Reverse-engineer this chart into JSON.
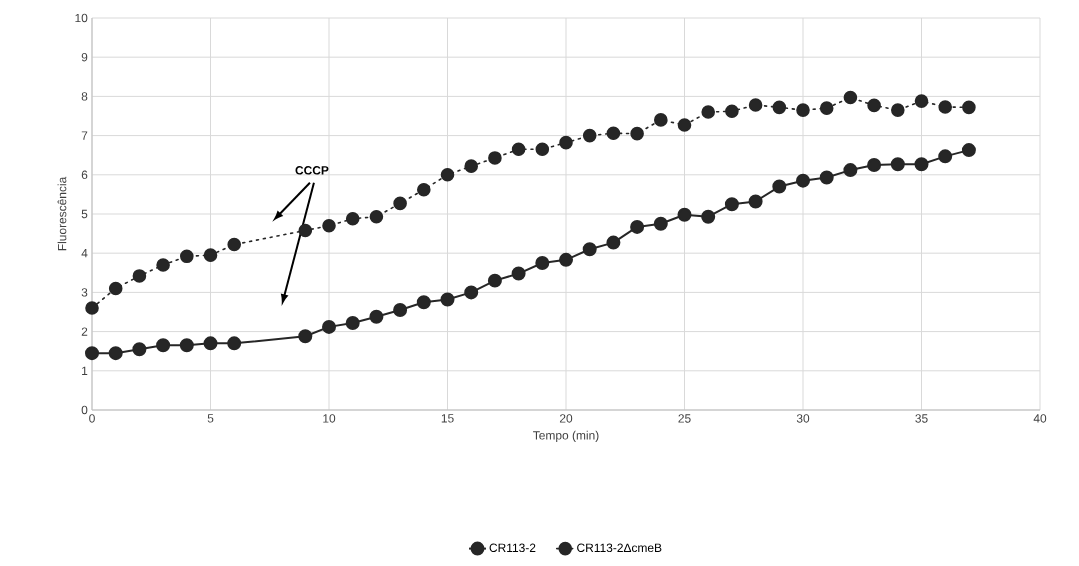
{
  "chart_data": {
    "type": "line",
    "xlabel": "Tempo (min)",
    "ylabel": "Fluorescência",
    "xlim": [
      0,
      40
    ],
    "ylim": [
      0,
      10
    ],
    "xticks": [
      0,
      5,
      10,
      15,
      20,
      25,
      30,
      35,
      40
    ],
    "yticks": [
      0,
      1,
      2,
      3,
      4,
      5,
      6,
      7,
      8,
      9,
      10
    ],
    "grid": true,
    "legend": "bottom",
    "marker": "circle",
    "annotations": [
      "CCCP"
    ],
    "series": [
      {
        "name": "CR113-2",
        "color": "#262626",
        "line_style": "solid",
        "x": [
          0,
          1,
          2,
          3,
          4,
          5,
          6,
          9,
          10,
          11,
          12,
          13,
          14,
          15,
          16,
          17,
          18,
          19,
          20,
          21,
          22,
          23,
          24,
          25,
          26,
          27,
          28,
          29,
          30,
          31,
          32,
          33,
          34,
          35,
          36,
          37
        ],
        "values": [
          1.45,
          1.45,
          1.55,
          1.65,
          1.65,
          1.7,
          1.7,
          1.88,
          2.12,
          2.22,
          2.38,
          2.55,
          2.75,
          2.82,
          3.0,
          3.3,
          3.48,
          3.75,
          3.83,
          4.1,
          4.27,
          4.67,
          4.75,
          4.98,
          4.93,
          5.25,
          5.32,
          5.7,
          5.85,
          5.93,
          6.12,
          6.25,
          6.27,
          6.27,
          6.47,
          6.63
        ]
      },
      {
        "name": "CR113-2ΔcmeB",
        "color": "#262626",
        "line_style": "dotted",
        "x": [
          0,
          1,
          2,
          3,
          4,
          5,
          6,
          9,
          10,
          11,
          12,
          13,
          14,
          15,
          16,
          17,
          18,
          19,
          20,
          21,
          22,
          23,
          24,
          25,
          26,
          27,
          28,
          29,
          30,
          31,
          32,
          33,
          34,
          35,
          36,
          37
        ],
        "values": [
          2.6,
          3.1,
          3.42,
          3.7,
          3.92,
          3.95,
          4.22,
          4.58,
          4.7,
          4.88,
          4.93,
          5.27,
          5.62,
          6.0,
          6.22,
          6.43,
          6.65,
          6.65,
          6.82,
          7.0,
          7.06,
          7.05,
          7.4,
          7.27,
          7.6,
          7.62,
          7.78,
          7.72,
          7.65,
          7.7,
          7.97,
          7.77,
          7.65,
          7.88,
          7.73,
          7.72
        ]
      }
    ]
  }
}
